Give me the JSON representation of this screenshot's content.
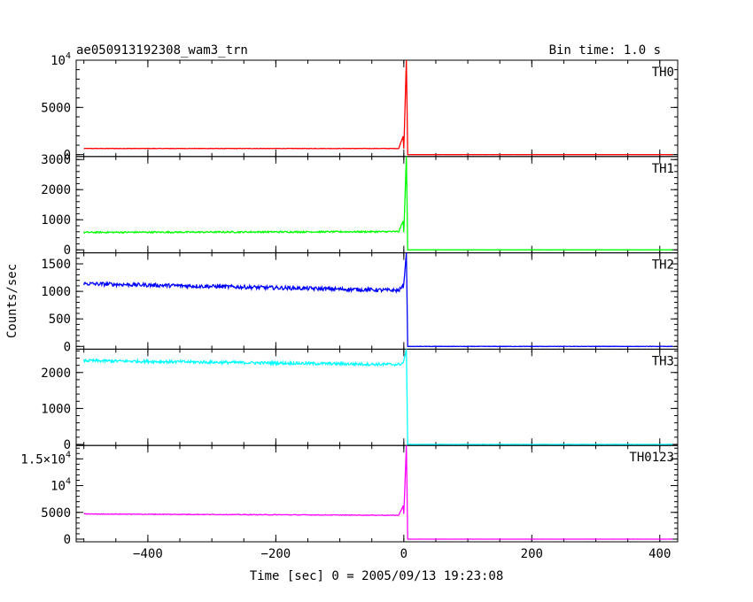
{
  "header": {
    "title": "ae050913192308_wam3_trn",
    "bin_time": "Bin time: 1.0 s"
  },
  "chart_data": {
    "type": "line",
    "xlabel": "Time [sec] 0 = 2005/09/13 19:23:08",
    "ylabel": "Counts/sec",
    "xlim": [
      -512,
      428
    ],
    "xticks": [
      -400,
      -200,
      0,
      200,
      400
    ],
    "panels": [
      {
        "name": "TH0",
        "color": "#ff0000",
        "ylim": [
          -200,
          10000
        ],
        "yticks": [
          {
            "v": 0,
            "label": "0"
          },
          {
            "v": 5000,
            "label": "5000"
          },
          {
            "v": 10000,
            "label": "10",
            "sup": "4"
          }
        ],
        "baseline": 650,
        "noise": 25,
        "pre_slope": 0,
        "peak": 10000,
        "post": 0
      },
      {
        "name": "TH1",
        "color": "#00ff00",
        "ylim": [
          -100,
          3100
        ],
        "yticks": [
          {
            "v": 0,
            "label": "0"
          },
          {
            "v": 1000,
            "label": "1000"
          },
          {
            "v": 2000,
            "label": "2000"
          },
          {
            "v": 3000,
            "label": "3000"
          }
        ],
        "baseline": 580,
        "noise": 25,
        "pre_slope": -0.05,
        "peak": 3100,
        "post": 0
      },
      {
        "name": "TH2",
        "color": "#0000ff",
        "ylim": [
          -50,
          1700
        ],
        "yticks": [
          {
            "v": 0,
            "label": "0"
          },
          {
            "v": 500,
            "label": "500"
          },
          {
            "v": 1000,
            "label": "1000"
          },
          {
            "v": 1500,
            "label": "1500"
          }
        ],
        "baseline": 1140,
        "noise": 35,
        "pre_slope": 0.25,
        "peak": 1700,
        "post": 0
      },
      {
        "name": "TH3",
        "color": "#00ffff",
        "ylim": [
          -30,
          2650
        ],
        "yticks": [
          {
            "v": 0,
            "label": "0"
          },
          {
            "v": 1000,
            "label": "1000"
          },
          {
            "v": 2000,
            "label": "2000"
          }
        ],
        "baseline": 2330,
        "noise": 40,
        "pre_slope": 0.22,
        "peak": 2650,
        "post": 0
      },
      {
        "name": "TH0123",
        "color": "#ff00ff",
        "ylim": [
          -500,
          17500
        ],
        "yticks": [
          {
            "v": 0,
            "label": "0"
          },
          {
            "v": 5000,
            "label": "5000"
          },
          {
            "v": 10000,
            "label": "10",
            "sup": "4"
          },
          {
            "v": 15000,
            "label": "1.5×10",
            "sup": "4"
          }
        ],
        "baseline": 4700,
        "noise": 60,
        "pre_slope": 0.5,
        "peak": 17500,
        "post": 0
      }
    ]
  }
}
